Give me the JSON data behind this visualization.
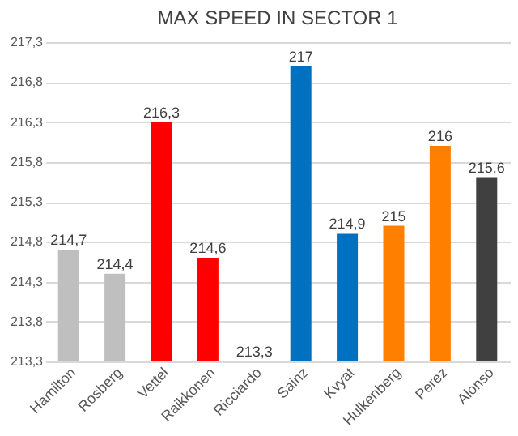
{
  "chart_data": {
    "type": "bar",
    "title": "MAX SPEED IN SECTOR 1",
    "categories": [
      "Hamilton",
      "Rosberg",
      "Vettel",
      "Raikkonen",
      "Ricciardo",
      "Sainz",
      "Kvyat",
      "Hulkenberg",
      "Perez",
      "Alonso"
    ],
    "values": [
      214.7,
      214.4,
      216.3,
      214.6,
      213.3,
      217,
      214.9,
      215,
      216,
      215.6
    ],
    "colors": [
      "#bfbfbf",
      "#bfbfbf",
      "#ff0000",
      "#ff0000",
      "#ff0000",
      "#0070c0",
      "#0070c0",
      "#ff8000",
      "#ff8000",
      "#404040"
    ],
    "value_labels": [
      "214,7",
      "214,4",
      "216,3",
      "214,6",
      "213,3",
      "217",
      "214,9",
      "215",
      "216",
      "215,6"
    ],
    "ylim": [
      213.3,
      217.3
    ],
    "yticks": [
      {
        "value": 213.3,
        "label": "213,3"
      },
      {
        "value": 213.8,
        "label": "213,8"
      },
      {
        "value": 214.3,
        "label": "214,3"
      },
      {
        "value": 214.8,
        "label": "214,8"
      },
      {
        "value": 215.3,
        "label": "215,3"
      },
      {
        "value": 215.8,
        "label": "215,8"
      },
      {
        "value": 216.3,
        "label": "216,3"
      },
      {
        "value": 216.8,
        "label": "216,8"
      },
      {
        "value": 217.3,
        "label": "217,3"
      }
    ],
    "grid": "y"
  }
}
